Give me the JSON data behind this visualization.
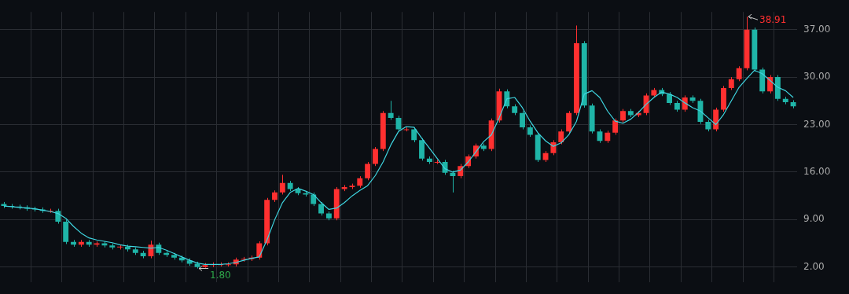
{
  "chart_data": {
    "type": "candlestick",
    "categories": [
      null,
      null,
      null,
      null,
      null,
      null,
      null,
      null,
      null,
      null,
      null,
      null,
      null,
      null,
      null,
      null,
      null,
      null,
      null,
      null,
      null,
      null,
      null,
      null,
      null,
      null,
      null,
      null,
      null,
      null,
      null,
      null,
      null,
      null,
      null,
      null,
      null,
      null,
      null,
      null,
      null,
      null,
      null,
      null,
      null,
      null,
      null,
      null,
      null,
      null,
      null,
      null,
      null,
      null,
      null,
      null,
      null,
      null,
      null,
      null,
      null,
      null,
      null,
      null,
      null,
      null,
      null,
      null,
      null,
      null,
      null,
      null,
      null,
      null,
      null,
      null,
      null,
      null,
      null,
      null,
      null,
      null,
      null,
      null,
      null,
      null,
      null,
      null,
      null,
      null,
      null,
      null,
      null,
      null,
      null,
      null,
      null,
      null,
      null,
      null,
      null,
      null,
      null
    ],
    "ohlc": [
      [
        11.3,
        11.6,
        10.7,
        11.0
      ],
      [
        11.0,
        11.3,
        10.6,
        10.9
      ],
      [
        10.9,
        11.2,
        10.5,
        10.8
      ],
      [
        10.8,
        11.1,
        10.3,
        10.6
      ],
      [
        10.6,
        10.9,
        10.2,
        10.5
      ],
      [
        10.5,
        10.8,
        10.0,
        10.3
      ],
      [
        10.3,
        10.6,
        10.0,
        10.3
      ],
      [
        10.3,
        10.6,
        8.4,
        8.7
      ],
      [
        8.7,
        9.0,
        5.4,
        5.7
      ],
      [
        5.7,
        6.0,
        5.0,
        5.3
      ],
      [
        5.3,
        6.0,
        5.0,
        5.7
      ],
      [
        5.7,
        6.0,
        5.0,
        5.3
      ],
      [
        5.3,
        5.8,
        5.0,
        5.5
      ],
      [
        5.5,
        5.8,
        4.9,
        5.2
      ],
      [
        5.2,
        5.5,
        4.6,
        4.9
      ],
      [
        4.9,
        5.3,
        4.6,
        5.0
      ],
      [
        5.0,
        5.3,
        4.3,
        4.6
      ],
      [
        4.6,
        4.9,
        3.8,
        4.1
      ],
      [
        4.1,
        4.4,
        3.3,
        3.6
      ],
      [
        3.6,
        5.9,
        3.3,
        5.3
      ],
      [
        5.3,
        5.6,
        3.8,
        4.1
      ],
      [
        4.1,
        4.4,
        3.5,
        3.8
      ],
      [
        3.8,
        4.1,
        3.1,
        3.4
      ],
      [
        3.4,
        3.7,
        2.7,
        3.0
      ],
      [
        3.0,
        3.3,
        2.2,
        2.5
      ],
      [
        2.5,
        2.8,
        1.8,
        2.0
      ],
      [
        2.0,
        2.6,
        1.9,
        2.3
      ],
      [
        2.3,
        2.7,
        2.0,
        2.4
      ],
      [
        2.4,
        2.7,
        2.1,
        2.4
      ],
      [
        2.4,
        2.7,
        2.1,
        2.4
      ],
      [
        2.4,
        3.4,
        2.1,
        3.1
      ],
      [
        3.1,
        3.5,
        2.8,
        3.2
      ],
      [
        3.2,
        3.7,
        2.9,
        3.4
      ],
      [
        3.4,
        5.8,
        3.1,
        5.5
      ],
      [
        5.5,
        12.2,
        5.2,
        11.9
      ],
      [
        11.9,
        13.3,
        11.6,
        13.0
      ],
      [
        13.0,
        15.6,
        12.7,
        14.4
      ],
      [
        14.4,
        14.7,
        13.2,
        13.5
      ],
      [
        13.5,
        13.8,
        12.6,
        12.9
      ],
      [
        12.9,
        13.2,
        12.4,
        12.7
      ],
      [
        12.7,
        13.0,
        11.0,
        11.3
      ],
      [
        11.3,
        11.6,
        9.6,
        9.9
      ],
      [
        9.9,
        10.2,
        8.9,
        9.2
      ],
      [
        9.2,
        13.8,
        8.9,
        13.5
      ],
      [
        13.5,
        14.1,
        13.2,
        13.8
      ],
      [
        13.8,
        14.3,
        13.5,
        14.0
      ],
      [
        14.0,
        15.4,
        13.7,
        15.1
      ],
      [
        15.1,
        17.5,
        14.8,
        17.2
      ],
      [
        17.2,
        19.7,
        16.9,
        19.4
      ],
      [
        19.4,
        25.0,
        19.1,
        24.7
      ],
      [
        24.7,
        26.5,
        23.7,
        24.0
      ],
      [
        24.0,
        24.3,
        22.0,
        22.3
      ],
      [
        22.3,
        22.6,
        22.0,
        22.3
      ],
      [
        22.3,
        22.6,
        20.4,
        20.7
      ],
      [
        20.7,
        21.0,
        17.7,
        18.0
      ],
      [
        18.0,
        18.3,
        17.2,
        17.5
      ],
      [
        17.5,
        17.8,
        17.2,
        17.5
      ],
      [
        17.5,
        17.8,
        15.6,
        15.9
      ],
      [
        15.9,
        16.2,
        13.0,
        15.4
      ],
      [
        15.4,
        17.2,
        15.1,
        16.9
      ],
      [
        16.9,
        18.6,
        16.6,
        18.3
      ],
      [
        18.3,
        20.2,
        18.0,
        19.9
      ],
      [
        19.9,
        20.2,
        19.1,
        19.4
      ],
      [
        19.4,
        23.9,
        19.1,
        23.6
      ],
      [
        23.6,
        28.3,
        23.3,
        27.9
      ],
      [
        27.9,
        28.2,
        25.4,
        25.7
      ],
      [
        25.7,
        26.0,
        24.4,
        24.7
      ],
      [
        24.7,
        25.0,
        22.3,
        22.6
      ],
      [
        22.6,
        22.9,
        21.2,
        21.5
      ],
      [
        21.5,
        21.8,
        17.5,
        17.8
      ],
      [
        17.8,
        19.1,
        17.5,
        18.8
      ],
      [
        18.8,
        20.7,
        18.5,
        20.4
      ],
      [
        20.4,
        22.3,
        20.1,
        22.0
      ],
      [
        22.0,
        25.0,
        21.7,
        24.7
      ],
      [
        24.7,
        37.6,
        24.4,
        35.0
      ],
      [
        35.0,
        35.3,
        25.5,
        25.8
      ],
      [
        25.8,
        26.1,
        21.7,
        22.0
      ],
      [
        22.0,
        22.3,
        20.3,
        20.6
      ],
      [
        20.6,
        22.1,
        20.3,
        21.8
      ],
      [
        21.8,
        23.9,
        21.5,
        23.6
      ],
      [
        23.6,
        25.3,
        23.3,
        25.0
      ],
      [
        25.0,
        25.3,
        24.1,
        24.4
      ],
      [
        24.4,
        25.0,
        24.1,
        24.7
      ],
      [
        24.7,
        27.6,
        24.4,
        27.3
      ],
      [
        27.3,
        28.4,
        27.0,
        28.1
      ],
      [
        28.1,
        28.4,
        27.2,
        27.5
      ],
      [
        27.5,
        27.8,
        25.9,
        26.2
      ],
      [
        26.2,
        26.5,
        24.9,
        25.2
      ],
      [
        25.2,
        27.3,
        24.9,
        27.0
      ],
      [
        27.0,
        27.3,
        26.2,
        26.5
      ],
      [
        26.5,
        26.8,
        23.1,
        23.4
      ],
      [
        23.4,
        23.7,
        22.0,
        22.3
      ],
      [
        22.3,
        25.5,
        22.0,
        25.2
      ],
      [
        25.2,
        28.7,
        24.9,
        28.4
      ],
      [
        28.4,
        30.0,
        28.1,
        29.7
      ],
      [
        29.7,
        31.6,
        29.4,
        31.3
      ],
      [
        31.3,
        38.91,
        31.0,
        37.0
      ],
      [
        37.0,
        37.3,
        30.8,
        31.1
      ],
      [
        31.1,
        31.4,
        27.6,
        27.9
      ],
      [
        27.9,
        30.3,
        27.6,
        30.0
      ],
      [
        30.0,
        30.3,
        26.5,
        26.8
      ],
      [
        26.8,
        27.1,
        26.0,
        26.3
      ],
      [
        26.3,
        26.6,
        25.4,
        25.7
      ]
    ],
    "colors": [
      "#1fb5a8",
      "#1fb5a8",
      "#1fb5a8",
      "#1fb5a8",
      "#1fb5a8",
      "#1fb5a8",
      "#ff3030",
      "#1fb5a8",
      "#1fb5a8",
      "#1fb5a8",
      "#ff3030",
      "#1fb5a8",
      "#ff3030",
      "#1fb5a8",
      "#1fb5a8",
      "#ff3030",
      "#1fb5a8",
      "#1fb5a8",
      "#1fb5a8",
      "#ff3030",
      "#1fb5a8",
      "#1fb5a8",
      "#1fb5a8",
      "#1fb5a8",
      "#1fb5a8",
      "#1fb5a8",
      "#ff3030",
      "#ff3030",
      "#ff3030",
      "#ff3030",
      "#ff3030",
      "#ff3030",
      "#ff3030",
      "#ff3030",
      "#ff3030",
      "#ff3030",
      "#ff3030",
      "#1fb5a8",
      "#1fb5a8",
      "#1fb5a8",
      "#1fb5a8",
      "#1fb5a8",
      "#1fb5a8",
      "#ff3030",
      "#ff3030",
      "#ff3030",
      "#ff3030",
      "#ff3030",
      "#ff3030",
      "#ff3030",
      "#1fb5a8",
      "#1fb5a8",
      "#ff3030",
      "#1fb5a8",
      "#1fb5a8",
      "#1fb5a8",
      "#ff3030",
      "#1fb5a8",
      "#1fb5a8",
      "#ff3030",
      "#ff3030",
      "#ff3030",
      "#1fb5a8",
      "#ff3030",
      "#ff3030",
      "#1fb5a8",
      "#1fb5a8",
      "#1fb5a8",
      "#1fb5a8",
      "#1fb5a8",
      "#ff3030",
      "#ff3030",
      "#ff3030",
      "#ff3030",
      "#ff3030",
      "#1fb5a8",
      "#1fb5a8",
      "#1fb5a8",
      "#ff3030",
      "#ff3030",
      "#ff3030",
      "#1fb5a8",
      "#ff3030",
      "#ff3030",
      "#ff3030",
      "#1fb5a8",
      "#1fb5a8",
      "#1fb5a8",
      "#ff3030",
      "#1fb5a8",
      "#1fb5a8",
      "#1fb5a8",
      "#ff3030",
      "#ff3030",
      "#ff3030",
      "#ff3030",
      "#ff3030",
      "#1fb5a8",
      "#1fb5a8",
      "#ff3030",
      "#1fb5a8",
      "#1fb5a8",
      "#1fb5a8"
    ],
    "series": [
      {
        "type": "line",
        "color": "#3fd5e0",
        "values": [
          11.0,
          10.9,
          10.8,
          10.7,
          10.6,
          10.4,
          10.2,
          9.9,
          9.2,
          8.0,
          7.0,
          6.3,
          6.0,
          5.8,
          5.6,
          5.3,
          5.1,
          5.0,
          4.9,
          4.8,
          4.9,
          4.5,
          4.0,
          3.5,
          3.0,
          2.6,
          2.4,
          2.4,
          2.4,
          2.5,
          2.7,
          3.0,
          3.3,
          3.5,
          6.0,
          9.0,
          11.5,
          13.0,
          13.6,
          13.2,
          12.7,
          11.5,
          10.5,
          10.7,
          11.5,
          12.5,
          13.3,
          14.0,
          15.5,
          17.5,
          20.0,
          22.0,
          22.7,
          22.6,
          21.0,
          19.5,
          18.0,
          16.5,
          16.0,
          16.3,
          17.5,
          19.0,
          20.5,
          21.5,
          24.0,
          26.8,
          27.0,
          25.5,
          23.5,
          21.8,
          20.6,
          19.8,
          20.3,
          21.5,
          23.5,
          27.5,
          28.0,
          27.0,
          25.0,
          23.5,
          23.2,
          23.8,
          24.8,
          26.0,
          27.0,
          27.8,
          27.5,
          27.0,
          26.2,
          25.5,
          25.0,
          24.0,
          23.0,
          24.5,
          26.5,
          28.5,
          29.8,
          31.0,
          30.5,
          29.5,
          28.5,
          28.0,
          27.0
        ]
      }
    ],
    "ylim": [
      -0.2,
      39.6
    ],
    "yticks": [
      {
        "value": 2,
        "label": "2.00"
      },
      {
        "value": 9,
        "label": "9.00"
      },
      {
        "value": 16,
        "label": "16.00"
      },
      {
        "value": 23,
        "label": "23.00"
      },
      {
        "value": 30,
        "label": "30.00"
      },
      {
        "value": 37,
        "label": "37.00"
      }
    ],
    "annotations": [
      "38.91",
      "1.80"
    ],
    "grid": true,
    "tick_labels": "y",
    "legend": false
  }
}
